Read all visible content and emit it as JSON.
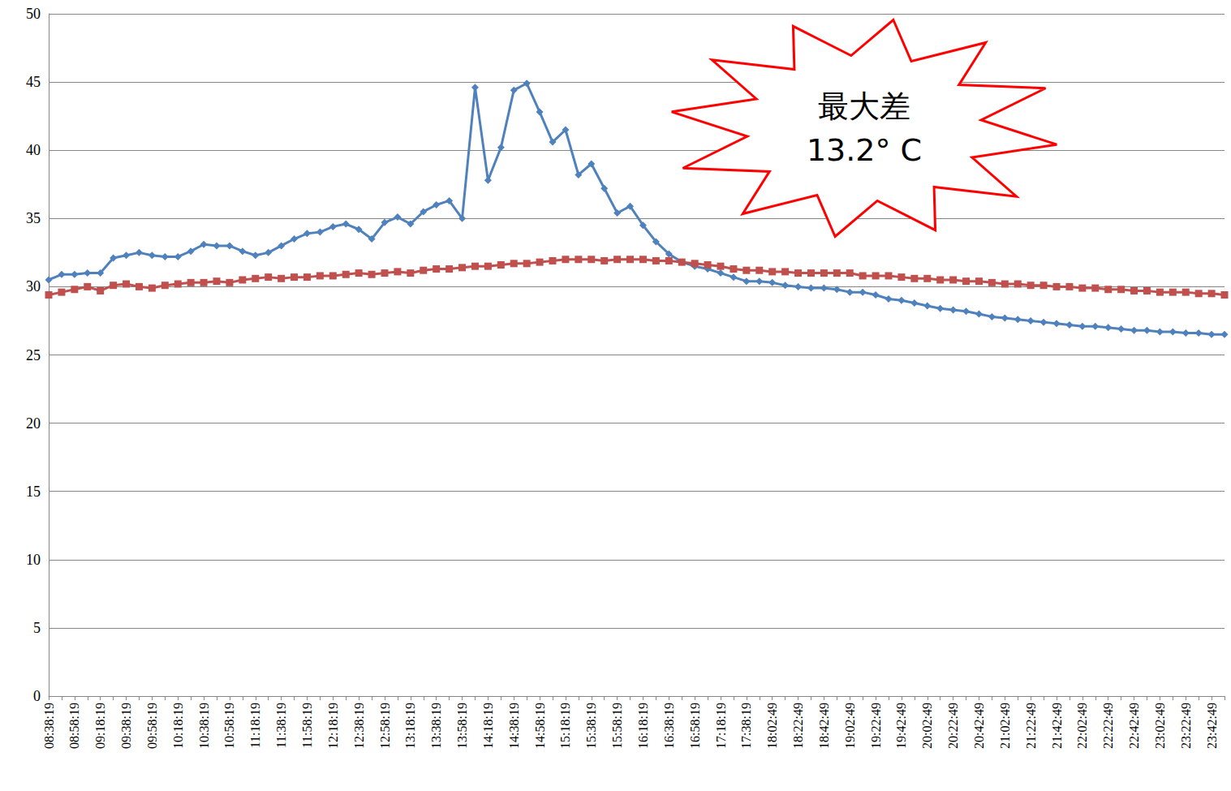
{
  "chart_data": {
    "type": "line",
    "categories": [
      "08:38:19",
      null,
      "08:58:19",
      null,
      "09:18:19",
      null,
      "09:38:19",
      null,
      "09:58:19",
      null,
      "10:18:19",
      null,
      "10:38:19",
      null,
      "10:58:19",
      null,
      "11:18:19",
      null,
      "11:38:19",
      null,
      "11:58:19",
      null,
      "12:18:19",
      null,
      "12:38:19",
      null,
      "12:58:19",
      null,
      "13:18:19",
      null,
      "13:38:19",
      null,
      "13:58:19",
      null,
      "14:18:19",
      null,
      "14:38:19",
      null,
      "14:58:19",
      null,
      "15:18:19",
      null,
      "15:38:19",
      null,
      "15:58:19",
      null,
      "16:18:19",
      null,
      "16:38:19",
      null,
      "16:58:19",
      null,
      "17:18:19",
      null,
      "17:38:19",
      null,
      "18:02:49",
      null,
      "18:22:49",
      null,
      "18:42:49",
      null,
      "19:02:49",
      null,
      "19:22:49",
      null,
      "19:42:49",
      null,
      "20:02:49",
      null,
      "20:22:49",
      null,
      "20:42:49",
      null,
      "21:02:49",
      null,
      "21:22:49",
      null,
      "21:42:49",
      null,
      "22:02:49",
      null,
      "22:22:49",
      null,
      "22:42:49",
      null,
      "23:02:49",
      null,
      "23:22:49",
      null,
      "23:42:49",
      null
    ],
    "series": [
      {
        "color": "#4f81bd",
        "marker": "diamond",
        "values": [
          30.5,
          30.9,
          30.9,
          31.0,
          31.0,
          32.1,
          32.3,
          32.5,
          32.3,
          32.2,
          32.2,
          32.6,
          33.1,
          33.0,
          33.0,
          32.6,
          32.3,
          32.5,
          33.0,
          33.5,
          33.9,
          34.0,
          34.4,
          34.6,
          34.2,
          33.5,
          34.7,
          35.1,
          34.6,
          35.5,
          36.0,
          36.3,
          35.0,
          44.6,
          37.8,
          40.2,
          44.4,
          44.9,
          42.8,
          40.6,
          41.5,
          38.2,
          39.0,
          37.2,
          35.4,
          35.9,
          34.5,
          33.3,
          32.4,
          31.8,
          31.5,
          31.3,
          31.0,
          30.7,
          30.4,
          30.4,
          30.3,
          30.1,
          30.0,
          29.9,
          29.9,
          29.8,
          29.6,
          29.6,
          29.4,
          29.1,
          29.0,
          28.8,
          28.6,
          28.4,
          28.3,
          28.2,
          28.0,
          27.8,
          27.7,
          27.6,
          27.5,
          27.4,
          27.3,
          27.2,
          27.1,
          27.1,
          27.0,
          26.9,
          26.8,
          26.8,
          26.7,
          26.7,
          26.6,
          26.6,
          26.5,
          26.5
        ]
      },
      {
        "color": "#c0504d",
        "marker": "square",
        "values": [
          29.4,
          29.6,
          29.8,
          30.0,
          29.7,
          30.1,
          30.2,
          30.0,
          29.9,
          30.1,
          30.2,
          30.3,
          30.3,
          30.4,
          30.3,
          30.5,
          30.6,
          30.7,
          30.6,
          30.7,
          30.7,
          30.8,
          30.8,
          30.9,
          31.0,
          30.9,
          31.0,
          31.1,
          31.0,
          31.2,
          31.3,
          31.3,
          31.4,
          31.5,
          31.5,
          31.6,
          31.7,
          31.7,
          31.8,
          31.9,
          32.0,
          32.0,
          32.0,
          31.9,
          32.0,
          32.0,
          32.0,
          31.9,
          31.9,
          31.8,
          31.7,
          31.6,
          31.5,
          31.3,
          31.2,
          31.2,
          31.1,
          31.1,
          31.0,
          31.0,
          31.0,
          31.0,
          31.0,
          30.8,
          30.8,
          30.8,
          30.7,
          30.6,
          30.6,
          30.5,
          30.5,
          30.4,
          30.4,
          30.3,
          30.2,
          30.2,
          30.1,
          30.1,
          30.0,
          30.0,
          29.9,
          29.9,
          29.8,
          29.8,
          29.7,
          29.7,
          29.6,
          29.6,
          29.6,
          29.5,
          29.5,
          29.4
        ]
      }
    ],
    "ylim": [
      0,
      50
    ],
    "yticks": [
      0,
      5,
      10,
      15,
      20,
      25,
      30,
      35,
      40,
      45,
      50
    ],
    "grid": true,
    "annotation": [
      "最大差",
      "13.2° C"
    ]
  }
}
